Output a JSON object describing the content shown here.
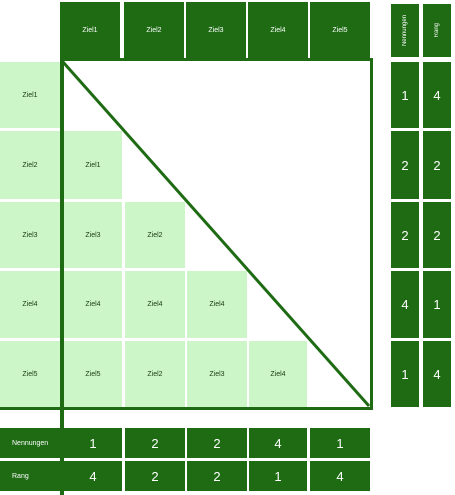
{
  "column_headers": [
    "Ziel1",
    "Ziel2",
    "Ziel3",
    "Ziel4",
    "Ziel5"
  ],
  "row_headers": [
    "Ziel1",
    "Ziel2",
    "Ziel3",
    "Ziel4",
    "Ziel5"
  ],
  "comparisons": {
    "row2": [
      "Ziel1"
    ],
    "row3": [
      "Ziel3",
      "Ziel2"
    ],
    "row4": [
      "Ziel4",
      "Ziel4",
      "Ziel4"
    ],
    "row5": [
      "Ziel5",
      "Ziel2",
      "Ziel3",
      "Ziel4"
    ]
  },
  "right_panel": {
    "nennungen_label": "Nennungen",
    "rang_label": "Rang",
    "nennungen": [
      "1",
      "2",
      "2",
      "4",
      "1"
    ],
    "rang": [
      "4",
      "2",
      "2",
      "1",
      "4"
    ]
  },
  "bottom_panel": {
    "nennungen_label": "Nennungen",
    "rang_label": "Rang",
    "nennungen": [
      "1",
      "2",
      "2",
      "4",
      "1"
    ],
    "rang": [
      "4",
      "2",
      "2",
      "1",
      "4"
    ]
  },
  "colors": {
    "header_green": "#1e6b14",
    "cell_green": "#ccf6c8",
    "background": "#ffffff"
  }
}
